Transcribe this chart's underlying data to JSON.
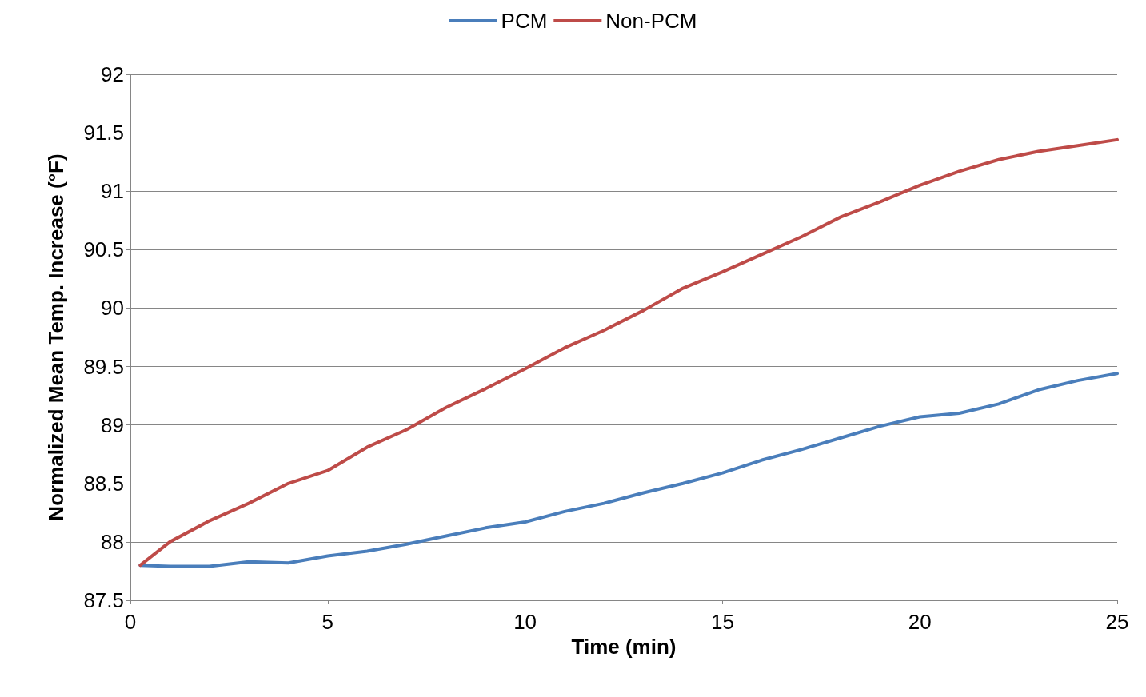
{
  "chart_data": {
    "type": "line",
    "xlabel": "Time (min)",
    "ylabel": "Normalized Mean Temp. Increase (°F)",
    "x": [
      0.25,
      1,
      2,
      3,
      4,
      5,
      6,
      7,
      8,
      9,
      10,
      11,
      12,
      13,
      14,
      15,
      16,
      17,
      18,
      19,
      20,
      21,
      22,
      23,
      24,
      25
    ],
    "series": [
      {
        "name": "PCM",
        "color": "#4a7ebb",
        "values": [
          87.8,
          87.79,
          87.79,
          87.83,
          87.82,
          87.88,
          87.92,
          87.98,
          88.05,
          88.12,
          88.17,
          88.26,
          88.33,
          88.42,
          88.5,
          88.59,
          88.7,
          88.79,
          88.89,
          88.99,
          89.07,
          89.1,
          89.18,
          89.3,
          89.38,
          89.44
        ]
      },
      {
        "name": "Non-PCM",
        "color": "#be4b48",
        "values": [
          87.8,
          88.0,
          88.18,
          88.33,
          88.5,
          88.61,
          88.81,
          88.96,
          89.15,
          89.31,
          89.48,
          89.66,
          89.81,
          89.98,
          90.17,
          90.31,
          90.46,
          90.61,
          90.78,
          90.91,
          91.05,
          91.17,
          91.27,
          91.34,
          91.39,
          91.44
        ]
      }
    ],
    "xlim": [
      0,
      25
    ],
    "xticks": [
      0,
      5,
      10,
      15,
      20,
      25
    ],
    "ylim": [
      87.5,
      92
    ],
    "yticks": [
      87.5,
      88,
      88.5,
      89,
      89.5,
      90,
      90.5,
      91,
      91.5,
      92
    ],
    "grid": "y",
    "legend": "top",
    "marker": "none",
    "line_style": "solid"
  }
}
